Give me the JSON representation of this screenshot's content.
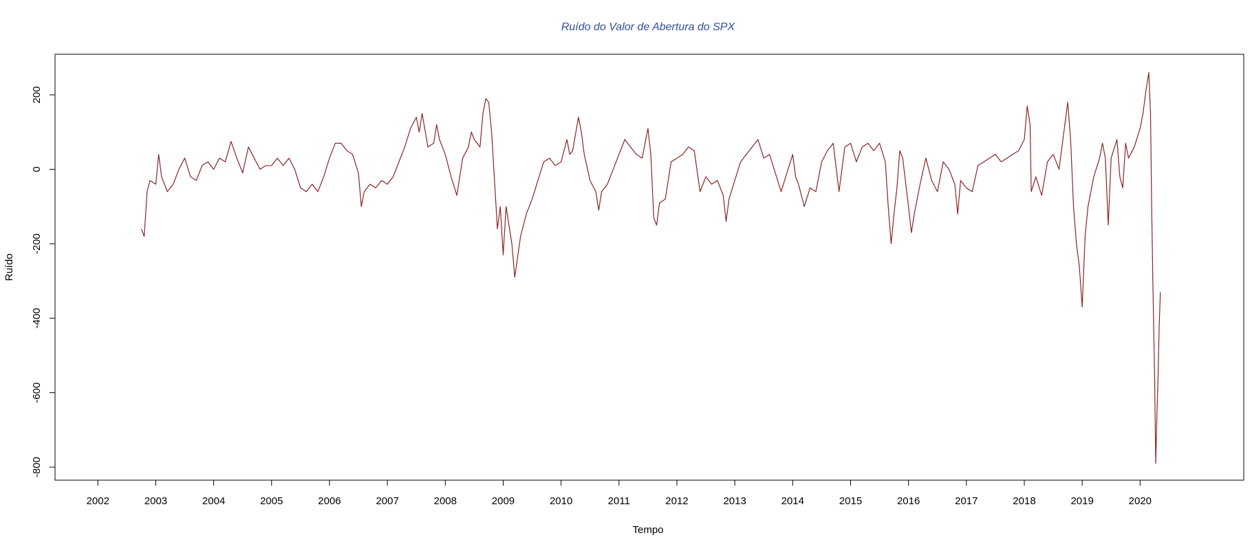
{
  "chart_data": {
    "type": "line",
    "title": "Ruído do Valor de Abertura do SPX",
    "xlabel": "Tempo",
    "ylabel": "Ruído",
    "color": "#8b2323",
    "xlim": [
      2001.26,
      2021.79
    ],
    "xticks": [
      2002,
      2003,
      2004,
      2005,
      2006,
      2007,
      2008,
      2009,
      2010,
      2011,
      2012,
      2013,
      2014,
      2015,
      2016,
      2017,
      2018,
      2019,
      2020
    ],
    "ylim": [
      -835,
      309
    ],
    "yticks": [
      -800,
      -600,
      -400,
      -200,
      0,
      200
    ],
    "x": [
      2002.75,
      2002.8,
      2002.85,
      2002.9,
      2003.0,
      2003.05,
      2003.1,
      2003.2,
      2003.3,
      2003.4,
      2003.5,
      2003.6,
      2003.7,
      2003.8,
      2003.9,
      2004.0,
      2004.1,
      2004.2,
      2004.3,
      2004.4,
      2004.5,
      2004.6,
      2004.7,
      2004.8,
      2004.9,
      2005.0,
      2005.1,
      2005.2,
      2005.3,
      2005.4,
      2005.5,
      2005.6,
      2005.7,
      2005.8,
      2005.9,
      2006.0,
      2006.1,
      2006.2,
      2006.3,
      2006.4,
      2006.5,
      2006.55,
      2006.6,
      2006.7,
      2006.8,
      2006.9,
      2007.0,
      2007.1,
      2007.2,
      2007.3,
      2007.4,
      2007.5,
      2007.55,
      2007.6,
      2007.7,
      2007.8,
      2007.85,
      2007.9,
      2008.0,
      2008.1,
      2008.2,
      2008.3,
      2008.4,
      2008.45,
      2008.5,
      2008.6,
      2008.65,
      2008.7,
      2008.75,
      2008.8,
      2008.85,
      2008.9,
      2008.95,
      2009.0,
      2009.05,
      2009.1,
      2009.15,
      2009.2,
      2009.3,
      2009.4,
      2009.5,
      2009.6,
      2009.7,
      2009.8,
      2009.9,
      2010.0,
      2010.1,
      2010.15,
      2010.2,
      2010.3,
      2010.35,
      2010.4,
      2010.5,
      2010.6,
      2010.65,
      2010.7,
      2010.8,
      2010.9,
      2011.0,
      2011.1,
      2011.2,
      2011.3,
      2011.4,
      2011.5,
      2011.55,
      2011.6,
      2011.65,
      2011.7,
      2011.8,
      2011.9,
      2012.0,
      2012.1,
      2012.2,
      2012.3,
      2012.4,
      2012.5,
      2012.6,
      2012.7,
      2012.8,
      2012.85,
      2012.9,
      2013.0,
      2013.1,
      2013.2,
      2013.3,
      2013.4,
      2013.5,
      2013.6,
      2013.7,
      2013.8,
      2013.9,
      2014.0,
      2014.05,
      2014.1,
      2014.2,
      2014.3,
      2014.4,
      2014.5,
      2014.6,
      2014.7,
      2014.8,
      2014.9,
      2015.0,
      2015.1,
      2015.2,
      2015.3,
      2015.4,
      2015.5,
      2015.6,
      2015.65,
      2015.7,
      2015.75,
      2015.8,
      2015.85,
      2015.9,
      2016.0,
      2016.05,
      2016.1,
      2016.2,
      2016.3,
      2016.4,
      2016.5,
      2016.6,
      2016.7,
      2016.8,
      2016.85,
      2016.9,
      2017.0,
      2017.1,
      2017.2,
      2017.3,
      2017.4,
      2017.5,
      2017.6,
      2017.7,
      2017.8,
      2017.9,
      2018.0,
      2018.05,
      2018.1,
      2018.12,
      2018.2,
      2018.3,
      2018.4,
      2018.5,
      2018.6,
      2018.7,
      2018.75,
      2018.8,
      2018.85,
      2018.9,
      2018.95,
      2019.0,
      2019.05,
      2019.1,
      2019.2,
      2019.3,
      2019.35,
      2019.4,
      2019.45,
      2019.5,
      2019.6,
      2019.65,
      2019.7,
      2019.75,
      2019.8,
      2019.9,
      2020.0,
      2020.05,
      2020.1,
      2020.15,
      2020.18,
      2020.2,
      2020.22,
      2020.25,
      2020.27,
      2020.29,
      2020.31,
      2020.33,
      2020.35
    ],
    "values": [
      -160,
      -180,
      -60,
      -30,
      -40,
      40,
      -20,
      -60,
      -40,
      0,
      30,
      -20,
      -30,
      10,
      20,
      0,
      30,
      20,
      75,
      30,
      -10,
      60,
      30,
      0,
      10,
      10,
      30,
      10,
      30,
      0,
      -50,
      -60,
      -40,
      -60,
      -20,
      30,
      70,
      70,
      50,
      40,
      -10,
      -100,
      -60,
      -40,
      -50,
      -30,
      -40,
      -20,
      20,
      60,
      110,
      140,
      100,
      150,
      60,
      70,
      120,
      80,
      40,
      -20,
      -70,
      30,
      60,
      100,
      80,
      60,
      150,
      190,
      180,
      100,
      -30,
      -160,
      -100,
      -230,
      -100,
      -150,
      -200,
      -290,
      -180,
      -120,
      -80,
      -30,
      20,
      30,
      10,
      20,
      80,
      40,
      50,
      140,
      100,
      40,
      -30,
      -60,
      -110,
      -60,
      -40,
      0,
      40,
      80,
      60,
      40,
      30,
      110,
      40,
      -130,
      -150,
      -90,
      -80,
      20,
      30,
      40,
      60,
      50,
      -60,
      -20,
      -40,
      -30,
      -70,
      -140,
      -80,
      -30,
      20,
      40,
      60,
      80,
      30,
      40,
      -10,
      -60,
      -10,
      40,
      -20,
      -40,
      -100,
      -50,
      -60,
      20,
      50,
      70,
      -60,
      60,
      70,
      20,
      60,
      70,
      50,
      70,
      20,
      -100,
      -200,
      -120,
      -50,
      50,
      30,
      -100,
      -170,
      -120,
      -40,
      30,
      -30,
      -60,
      20,
      0,
      -40,
      -120,
      -30,
      -50,
      -60,
      10,
      20,
      30,
      40,
      20,
      30,
      40,
      50,
      80,
      170,
      120,
      -60,
      -20,
      -70,
      20,
      40,
      0,
      120,
      180,
      80,
      -100,
      -200,
      -260,
      -370,
      -180,
      -100,
      -20,
      30,
      70,
      30,
      -150,
      30,
      80,
      -20,
      -50,
      70,
      30,
      60,
      110,
      150,
      210,
      260,
      150,
      -100,
      -300,
      -550,
      -790,
      -660,
      -560,
      -420,
      -330
    ]
  }
}
